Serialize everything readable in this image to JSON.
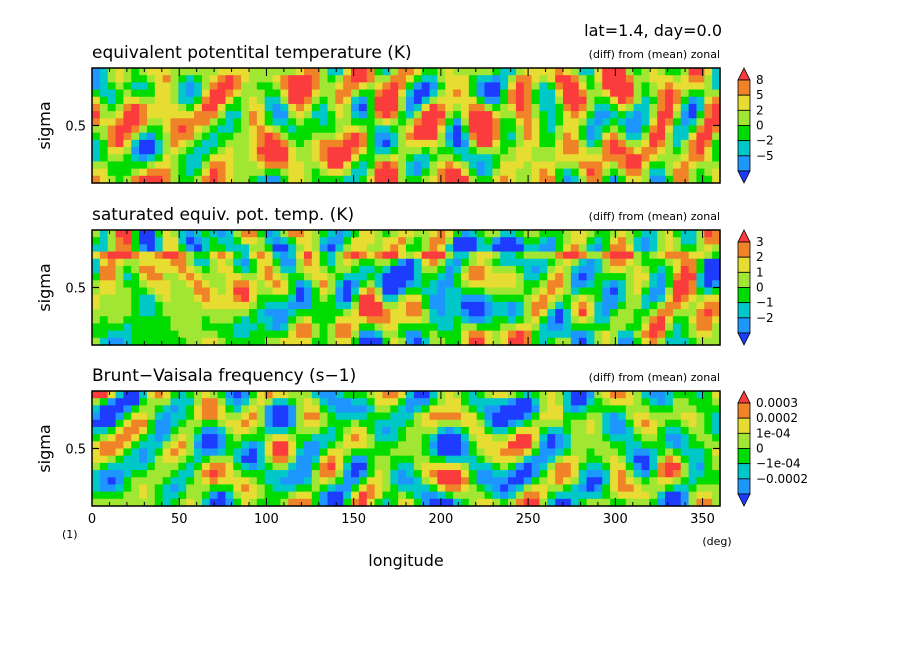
{
  "header": {
    "label": "lat=1.4, day=0.0"
  },
  "footer": {
    "fig_number": "(1)",
    "x_unit": "(deg)"
  },
  "palette": [
    "#1e3cff",
    "#1e96ff",
    "#00c8c8",
    "#00dc00",
    "#a0e632",
    "#e6dc32",
    "#f08228",
    "#fa3c3c"
  ],
  "chart_data": [
    {
      "type": "heatmap",
      "title": "equivalent potentital temperature (K)",
      "subtitle": "(diff) from (mean) zonal",
      "xlabel": "",
      "ylabel": "sigma",
      "xlim": [
        0,
        360
      ],
      "ylim": [
        0.08,
        0.92
      ],
      "y_ticks": [
        "0.5"
      ],
      "x_ticks": [],
      "colorbar": {
        "levels": [
          "8",
          "5",
          "2",
          "0",
          "−2",
          "−5"
        ],
        "range": [
          -8,
          9
        ]
      },
      "field": {
        "seed": 11,
        "amp": 7.5,
        "offset": 0.3,
        "bands": [
          {
            "y": 0.9,
            "value": 1.5,
            "width": 0.04
          }
        ]
      }
    },
    {
      "type": "heatmap",
      "title": "saturated equiv. pot. temp. (K)",
      "subtitle": "(diff) from (mean) zonal",
      "xlabel": "",
      "ylabel": "sigma",
      "xlim": [
        0,
        360
      ],
      "ylim": [
        0.08,
        0.92
      ],
      "y_ticks": [
        "0.5"
      ],
      "x_ticks": [],
      "colorbar": {
        "levels": [
          "3",
          "2",
          "1",
          "0",
          "−1",
          "−2"
        ],
        "range": [
          -3,
          3.5
        ]
      },
      "field": {
        "seed": 23,
        "amp": 2.6,
        "offset": 0.1,
        "bands": [
          {
            "y": 0.87,
            "value": -2.4,
            "width": 0.03
          },
          {
            "y": 0.8,
            "value": 2.5,
            "width": 0.03
          }
        ]
      }
    },
    {
      "type": "heatmap",
      "title": "Brunt−Vaisala frequency (s−1)",
      "subtitle": "(diff) from (mean) zonal",
      "xlabel": "longitude",
      "ylabel": "sigma",
      "xlim": [
        0,
        360
      ],
      "ylim": [
        0.08,
        0.92
      ],
      "y_ticks": [
        "0.5"
      ],
      "x_ticks": [
        "0",
        "50",
        "100",
        "150",
        "200",
        "250",
        "300",
        "350"
      ],
      "colorbar": {
        "levels": [
          "0.0003",
          "0.0002",
          "1e-04",
          "0",
          "−1e-04",
          "−0.0002"
        ],
        "range": [
          -0.0003,
          0.00035
        ]
      },
      "field": {
        "seed": 37,
        "amp": 0.00028,
        "offset": 0.0,
        "bands": [
          {
            "y": 0.88,
            "value": -0.00028,
            "width": 0.03
          },
          {
            "y": 0.93,
            "value": 0.00032,
            "width": 0.02
          }
        ]
      }
    }
  ]
}
